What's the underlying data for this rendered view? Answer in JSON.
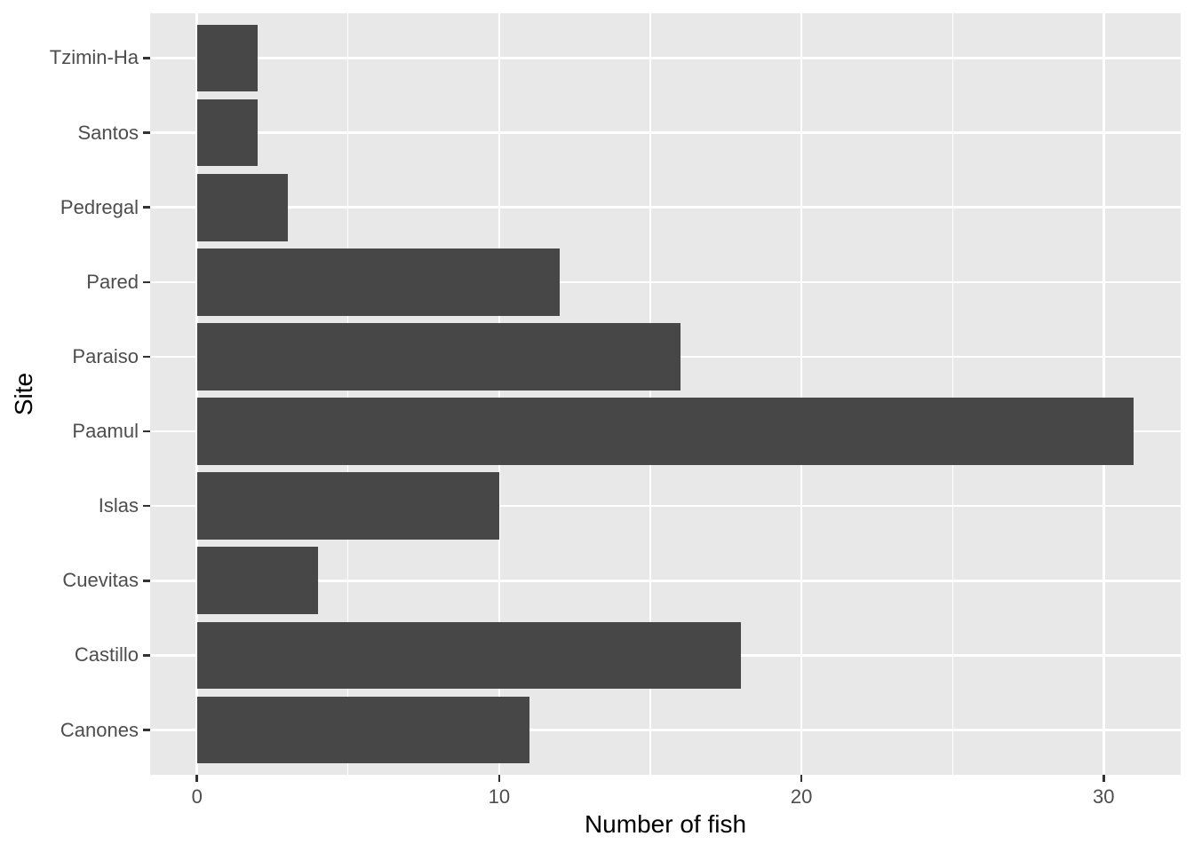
{
  "chart_data": {
    "type": "bar",
    "orientation": "horizontal",
    "title": "",
    "xlabel": "Number of fish",
    "ylabel": "Site",
    "categories_top_to_bottom": [
      "Tzimin-Ha",
      "Santos",
      "Pedregal",
      "Pared",
      "Paraiso",
      "Paamul",
      "Islas",
      "Cuevitas",
      "Castillo",
      "Canones"
    ],
    "values": [
      2,
      2,
      3,
      12,
      16,
      31,
      10,
      4,
      18,
      11
    ],
    "x_major_ticks": [
      0,
      10,
      20,
      30
    ],
    "x_minor_gridlines": [
      5,
      15,
      25
    ],
    "xlim": [
      -1.55,
      32.55
    ],
    "grid": "major-and-minor-x, major-y, white on grey panel",
    "legend": "none",
    "colors": {
      "bar_fill": "#474747",
      "panel_background": "#E8E8E8",
      "gridline": "#FFFFFF",
      "tick_mark": "#333333",
      "tick_label": "#4D4D4D",
      "axis_title": "#000000",
      "page_background": "#FFFFFF"
    }
  }
}
